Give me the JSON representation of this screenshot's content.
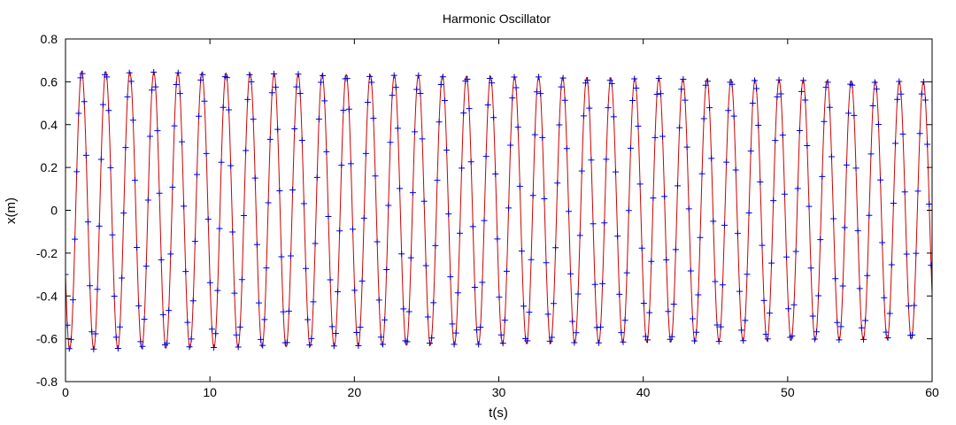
{
  "chart_data": {
    "type": "line",
    "title": "Harmonic Oscillator",
    "xlabel": "t(s)",
    "ylabel": "x(m)",
    "xlim": [
      0,
      60
    ],
    "ylim": [
      -0.8,
      0.8
    ],
    "x_ticks": [
      "0",
      "10",
      "20",
      "30",
      "40",
      "50",
      "60"
    ],
    "y_ticks": [
      "0.8",
      "0.6",
      "0.4",
      "0.2",
      "0",
      "-0.2",
      "-0.4",
      "-0.6",
      "-0.8"
    ],
    "grid": false,
    "legend": "none",
    "series": [
      {
        "style": "line",
        "color": "#cc0000",
        "model": {
          "kind": "damped_cosine",
          "amplitude_start": 0.65,
          "amplitude_end": 0.6,
          "period": 1.665,
          "x_at_t0": -0.3,
          "t_start": 0,
          "t_end": 60
        }
      },
      {
        "style": "markers",
        "marker": "+",
        "color": "#0000cc",
        "sample_interval": 0.13,
        "t_start": 0,
        "t_end": 60,
        "follows_model_of_series": 0
      }
    ]
  }
}
